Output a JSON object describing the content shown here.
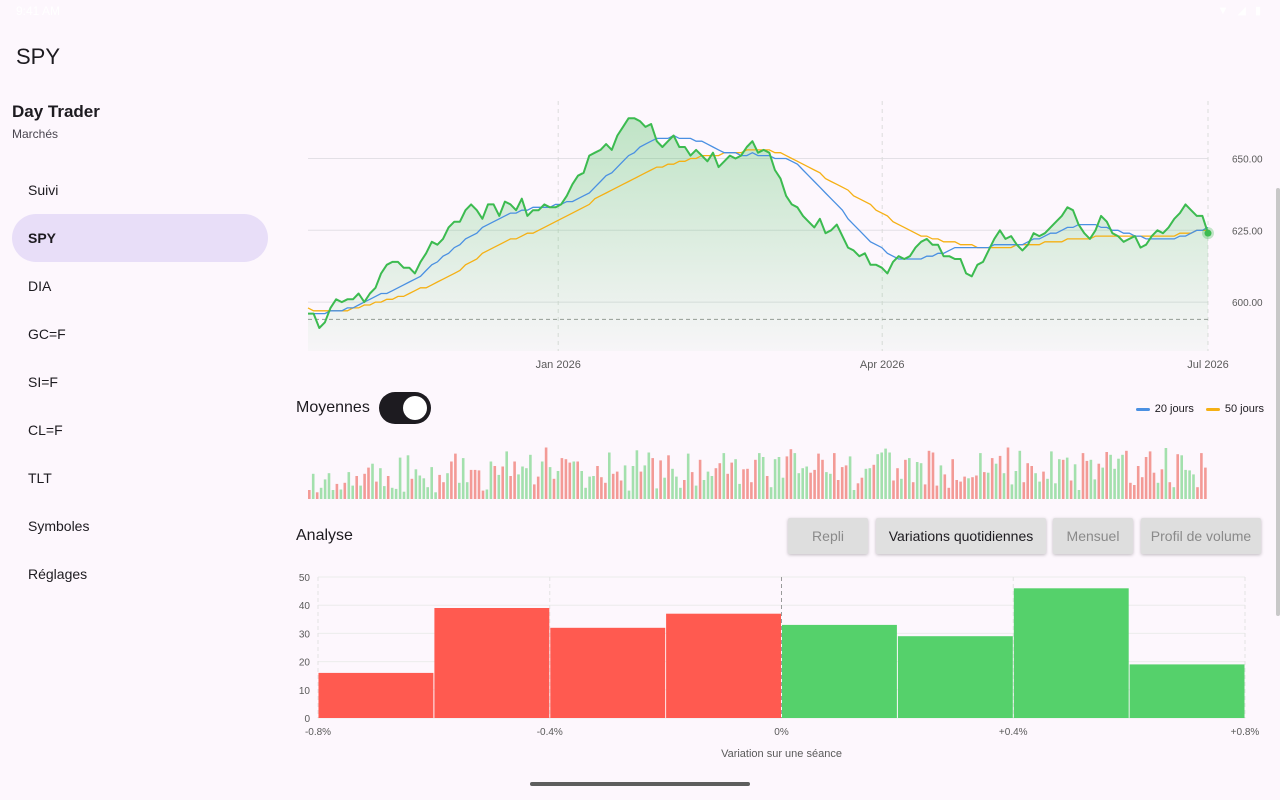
{
  "status_bar": {
    "time": "9:41 AM",
    "icons": "▼ ◢ ▮"
  },
  "app": {
    "title": "SPY"
  },
  "drawer": {
    "title": "Day Trader",
    "subtitle": "Marchés",
    "items": [
      {
        "label": "Suivi",
        "active": false
      },
      {
        "label": "SPY",
        "active": true
      },
      {
        "label": "DIA",
        "active": false
      },
      {
        "label": "GC=F",
        "active": false
      },
      {
        "label": "SI=F",
        "active": false
      },
      {
        "label": "CL=F",
        "active": false
      },
      {
        "label": "TLT",
        "active": false
      },
      {
        "label": "Symboles",
        "active": false
      },
      {
        "label": "Réglages",
        "active": false
      }
    ]
  },
  "moyennes": {
    "label": "Moyennes",
    "enabled": true
  },
  "legend": {
    "ma20": "20 jours",
    "ma50": "50 jours"
  },
  "analyse": {
    "label": "Analyse",
    "tabs": [
      {
        "label": "Repli",
        "active": false
      },
      {
        "label": "Variations quotidiennes",
        "active": true
      },
      {
        "label": "Mensuel",
        "active": false
      },
      {
        "label": "Profil de volume",
        "active": false
      }
    ]
  },
  "colors": {
    "price_line": "#3cbb50",
    "ma20": "#4a90e2",
    "ma50": "#f5b014",
    "up": "#55d16b",
    "down": "#ff5a50",
    "volume_up": "#a3e0ad",
    "volume_down": "#f39a96"
  },
  "chart_data": [
    {
      "type": "line",
      "series": [
        {
          "name": "SPY",
          "values": [
            596,
            596,
            591,
            593,
            598,
            601,
            600,
            601,
            601,
            603,
            600,
            603,
            605,
            610,
            613,
            614,
            614,
            612,
            612,
            610,
            614,
            617,
            621,
            620,
            622,
            626,
            628,
            628,
            632,
            634,
            632,
            629,
            634,
            634,
            630,
            635,
            634,
            632,
            636,
            630,
            632,
            632,
            634,
            633,
            633,
            634,
            637,
            641,
            644,
            645,
            651,
            652,
            653,
            655,
            653,
            658,
            661,
            664,
            664,
            663,
            661,
            662,
            656,
            654,
            656,
            658,
            654,
            654,
            651,
            653,
            651,
            649,
            652,
            647,
            649,
            651,
            650,
            651,
            654,
            656,
            652,
            653,
            652,
            646,
            643,
            637,
            634,
            633,
            630,
            628,
            626,
            629,
            624,
            625,
            627,
            623,
            619,
            618,
            616,
            617,
            613,
            613,
            612,
            610,
            614,
            616,
            615,
            616,
            619,
            621,
            622,
            620,
            620,
            616,
            616,
            615,
            615,
            610,
            609,
            613,
            614,
            618,
            622,
            625,
            622,
            623,
            620,
            618,
            620,
            624,
            623,
            624,
            626,
            628,
            630,
            633,
            632,
            627,
            624,
            622,
            625,
            630,
            628,
            624,
            623,
            621,
            622,
            623,
            619,
            620,
            623,
            625,
            624,
            626,
            629,
            631,
            634,
            632,
            630,
            630,
            624
          ]
        },
        {
          "name": "20 jours",
          "values": [
            596,
            596,
            596,
            596,
            597,
            597,
            597,
            598,
            598,
            599,
            600,
            601,
            602,
            603,
            603,
            604,
            605,
            606,
            607,
            608,
            609,
            611,
            613,
            614,
            616,
            617,
            619,
            620,
            622,
            623,
            624,
            626,
            627,
            628,
            629,
            630,
            631,
            631,
            632,
            632,
            633,
            633,
            633,
            633,
            634,
            634,
            635,
            635,
            636,
            637,
            638,
            640,
            642,
            644,
            645,
            647,
            649,
            651,
            652,
            654,
            655,
            656,
            657,
            657,
            657,
            658,
            657,
            657,
            657,
            656,
            656,
            655,
            654,
            653,
            652,
            652,
            652,
            651,
            651,
            652,
            651,
            651,
            651,
            650,
            650,
            650,
            649,
            648,
            646,
            644,
            642,
            640,
            638,
            636,
            634,
            632,
            629,
            627,
            625,
            623,
            621,
            620,
            619,
            617,
            616,
            615,
            615,
            615,
            615,
            615,
            616,
            616,
            617,
            617,
            618,
            619,
            619,
            619,
            619,
            619,
            619,
            619,
            620,
            620,
            620,
            620,
            620,
            620,
            621,
            622,
            622,
            623,
            624,
            624,
            625,
            626,
            626,
            627,
            627,
            627,
            627,
            626,
            626,
            625,
            625,
            624,
            624,
            623,
            623,
            622,
            622,
            622,
            622,
            622,
            622,
            623,
            623,
            624,
            625,
            625,
            626
          ]
        },
        {
          "name": "50 jours",
          "values": [
            598,
            597,
            597,
            597,
            597,
            597,
            597,
            597,
            598,
            598,
            599,
            599,
            600,
            600,
            601,
            601,
            602,
            602,
            603,
            604,
            605,
            605,
            606,
            607,
            608,
            609,
            610,
            611,
            613,
            614,
            615,
            617,
            618,
            619,
            620,
            621,
            622,
            622,
            623,
            624,
            624,
            625,
            626,
            627,
            628,
            629,
            630,
            631,
            632,
            633,
            634,
            636,
            637,
            638,
            639,
            640,
            641,
            642,
            643,
            644,
            645,
            646,
            647,
            647,
            648,
            648,
            649,
            649,
            650,
            650,
            651,
            651,
            651,
            651,
            652,
            652,
            652,
            652,
            653,
            653,
            653,
            653,
            653,
            652,
            652,
            651,
            650,
            649,
            648,
            647,
            646,
            645,
            643,
            642,
            641,
            640,
            639,
            637,
            636,
            635,
            634,
            632,
            631,
            630,
            628,
            627,
            626,
            625,
            624,
            623,
            623,
            622,
            622,
            621,
            621,
            621,
            620,
            620,
            620,
            619,
            619,
            619,
            619,
            619,
            619,
            619,
            620,
            620,
            620,
            620,
            620,
            621,
            621,
            621,
            621,
            622,
            622,
            622,
            622,
            622,
            623,
            623,
            623,
            623,
            623,
            623,
            623,
            623,
            623,
            623,
            623,
            623,
            623,
            623,
            623,
            624,
            624,
            624,
            625,
            625,
            625
          ]
        }
      ],
      "x_ticks": [
        "Jan 2026",
        "Apr 2026",
        "Jul 2026"
      ],
      "y_ticks": [
        "600.00",
        "625.00",
        "650.00"
      ],
      "ylim": [
        583,
        670
      ],
      "reference_line": 594,
      "grid": true
    },
    {
      "type": "bar",
      "name": "volume",
      "values": [
        0.16,
        0.45,
        0.12,
        0.2,
        0.35,
        0.46,
        0.16,
        0.27,
        0.17,
        0.29,
        0.48,
        0.24,
        0.41,
        0.24,
        0.45,
        0.56,
        0.63,
        0.31,
        0.55,
        0.23,
        0.41,
        0.2,
        0.18,
        0.74,
        0.13,
        0.78,
        0.36,
        0.53,
        0.42,
        0.37,
        0.21,
        0.57,
        0.12,
        0.43,
        0.3,
        0.46,
        0.67,
        0.81,
        0.29,
        0.73,
        0.3,
        0.52,
        0.52,
        0.51,
        0.15,
        0.17,
        0.67,
        0.59,
        0.43,
        0.58,
        0.85,
        0.41,
        0.67,
        0.44,
        0.58,
        0.55,
        0.79,
        0.26,
        0.4,
        0.67,
        0.92,
        0.57,
        0.36,
        0.5,
        0.73,
        0.71,
        0.65,
        0.67,
        0.67,
        0.5,
        0.2,
        0.4,
        0.41,
        0.59,
        0.39,
        0.29,
        0.83,
        0.45,
        0.49,
        0.33,
        0.6,
        0.15,
        0.59,
        0.87,
        0.49,
        0.6,
        0.83,
        0.73,
        0.19,
        0.69,
        0.38,
        0.78,
        0.54,
        0.4,
        0.2,
        0.34,
        0.81,
        0.48,
        0.24,
        0.7,
        0.34,
        0.49,
        0.41,
        0.55,
        0.64,
        0.82,
        0.45,
        0.65,
        0.71,
        0.27,
        0.53,
        0.54,
        0.3,
        0.7,
        0.82,
        0.75,
        0.41,
        0.21,
        0.71,
        0.75,
        0.38,
        0.76,
        0.89,
        0.82,
        0.46,
        0.55,
        0.58,
        0.47,
        0.52,
        0.81,
        0.7,
        0.48,
        0.45,
        0.82,
        0.34,
        0.57,
        0.6,
        0.76,
        0.16,
        0.28,
        0.38,
        0.54,
        0.55,
        0.61,
        0.8,
        0.83,
        0.9,
        0.83,
        0.33,
        0.55,
        0.36,
        0.7,
        0.73,
        0.3,
        0.66,
        0.64,
        0.26,
        0.86,
        0.83,
        0.24,
        0.6,
        0.44,
        0.2,
        0.71,
        0.34,
        0.31,
        0.4,
        0.37,
        0.39,
        0.42,
        0.82,
        0.48,
        0.47,
        0.73,
        0.63,
        0.77,
        0.46,
        0.92,
        0.26,
        0.5,
        0.86,
        0.3,
        0.64,
        0.59,
        0.46,
        0.31,
        0.49,
        0.36,
        0.85,
        0.28,
        0.71,
        0.7,
        0.74,
        0.33,
        0.62,
        0.16,
        0.82,
        0.68,
        0.7,
        0.35,
        0.63,
        0.56,
        0.84,
        0.79,
        0.54,
        0.72,
        0.79,
        0.86,
        0.29,
        0.25,
        0.59,
        0.39,
        0.75,
        0.85,
        0.47,
        0.29,
        0.53,
        0.91,
        0.3,
        0.21,
        0.8,
        0.78,
        0.52,
        0.51,
        0.44,
        0.21,
        0.82,
        0.56
      ],
      "up": [
        false,
        true,
        false,
        true,
        true,
        true,
        true,
        false,
        true,
        false,
        true,
        true,
        false,
        true,
        false,
        false,
        true,
        false,
        true,
        true,
        false,
        true,
        true,
        true,
        true,
        true,
        false,
        true,
        true,
        true,
        true,
        true,
        true,
        false,
        false,
        true,
        false,
        false,
        true,
        true,
        true,
        false,
        false,
        false,
        false,
        true,
        true,
        false,
        true,
        false,
        true,
        false,
        false,
        true,
        true,
        true,
        true,
        false,
        false,
        true,
        false,
        true,
        false,
        true,
        false,
        false,
        false,
        true,
        false,
        true,
        true,
        true,
        true,
        false,
        false,
        false,
        true,
        false,
        false,
        false,
        true,
        true,
        true,
        true,
        false,
        true,
        true,
        false,
        true,
        false,
        true,
        false,
        true,
        true,
        true,
        false,
        true,
        false,
        true,
        false,
        true,
        true,
        true,
        false,
        false,
        true,
        false,
        false,
        true,
        true,
        false,
        false,
        false,
        false,
        true,
        true,
        false,
        true,
        true,
        true,
        true,
        false,
        false,
        true,
        true,
        true,
        true,
        false,
        false,
        false,
        false,
        true,
        true,
        false,
        false,
        false,
        false,
        true,
        true,
        false,
        false,
        true,
        true,
        false,
        true,
        true,
        true,
        true,
        false,
        false,
        true,
        false,
        true,
        false,
        true,
        true,
        false,
        false,
        false,
        false,
        true,
        false,
        false,
        false,
        false,
        false,
        false,
        true,
        false,
        false,
        true,
        false,
        true,
        false,
        true,
        false,
        true,
        false,
        true,
        true,
        true,
        false,
        false,
        false,
        true,
        true,
        false,
        true,
        true,
        true,
        true,
        false,
        true,
        false,
        true,
        true,
        false,
        false,
        true,
        true,
        false,
        true,
        false,
        true,
        true,
        true,
        true,
        false,
        false,
        false,
        false,
        false,
        false,
        false,
        false,
        true,
        false,
        true,
        false,
        true,
        false,
        true,
        true,
        true,
        true,
        false
      ]
    },
    {
      "type": "bar",
      "name": "histogram",
      "categories": [
        "-0.8%",
        "-0.6%",
        "-0.4%",
        "-0.2%",
        "0%",
        "+0.2%",
        "+0.4%",
        "+0.6%"
      ],
      "bins": [
        [
          -0.8,
          -0.6
        ],
        [
          -0.6,
          -0.4
        ],
        [
          -0.4,
          -0.2
        ],
        [
          -0.2,
          0
        ],
        [
          0,
          0.2
        ],
        [
          0.2,
          0.4
        ],
        [
          0.4,
          0.6
        ],
        [
          0.6,
          0.8
        ]
      ],
      "values": [
        16,
        39,
        32,
        37,
        33,
        29,
        46,
        19
      ],
      "x_ticks": [
        "-0.8%",
        "-0.4%",
        "0%",
        "+0.4%",
        "+0.8%"
      ],
      "y_ticks": [
        "0",
        "10",
        "20",
        "30",
        "40",
        "50"
      ],
      "ylim": [
        0,
        50
      ],
      "xlabel": "Variation sur une séance"
    }
  ]
}
